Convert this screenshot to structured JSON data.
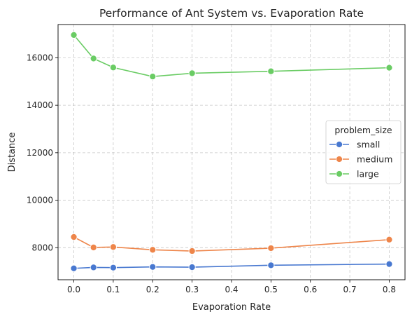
{
  "chart_data": {
    "type": "line",
    "title": "Performance of Ant System vs. Evaporation Rate",
    "xlabel": "Evaporation Rate",
    "ylabel": "Distance",
    "x": [
      0.0,
      0.05,
      0.1,
      0.2,
      0.3,
      0.5,
      0.8
    ],
    "xlim": [
      -0.04,
      0.84
    ],
    "ylim": [
      6650,
      17400
    ],
    "x_ticks": [
      "0.0",
      "0.1",
      "0.2",
      "0.3",
      "0.4",
      "0.5",
      "0.6",
      "0.7",
      "0.8"
    ],
    "y_ticks": [
      "8000",
      "10000",
      "12000",
      "14000",
      "16000"
    ],
    "grid": true,
    "legend": {
      "title": "problem_size",
      "placement": "center-right"
    },
    "series": [
      {
        "name": "small",
        "color": "#4878d0",
        "values": [
          7130,
          7170,
          7160,
          7190,
          7180,
          7260,
          7310
        ]
      },
      {
        "name": "medium",
        "color": "#ee854a",
        "values": [
          8450,
          8010,
          8030,
          7910,
          7860,
          7980,
          8340
        ]
      },
      {
        "name": "large",
        "color": "#6acc64",
        "values": [
          16960,
          15970,
          15590,
          15210,
          15350,
          15430,
          15580
        ]
      }
    ]
  }
}
